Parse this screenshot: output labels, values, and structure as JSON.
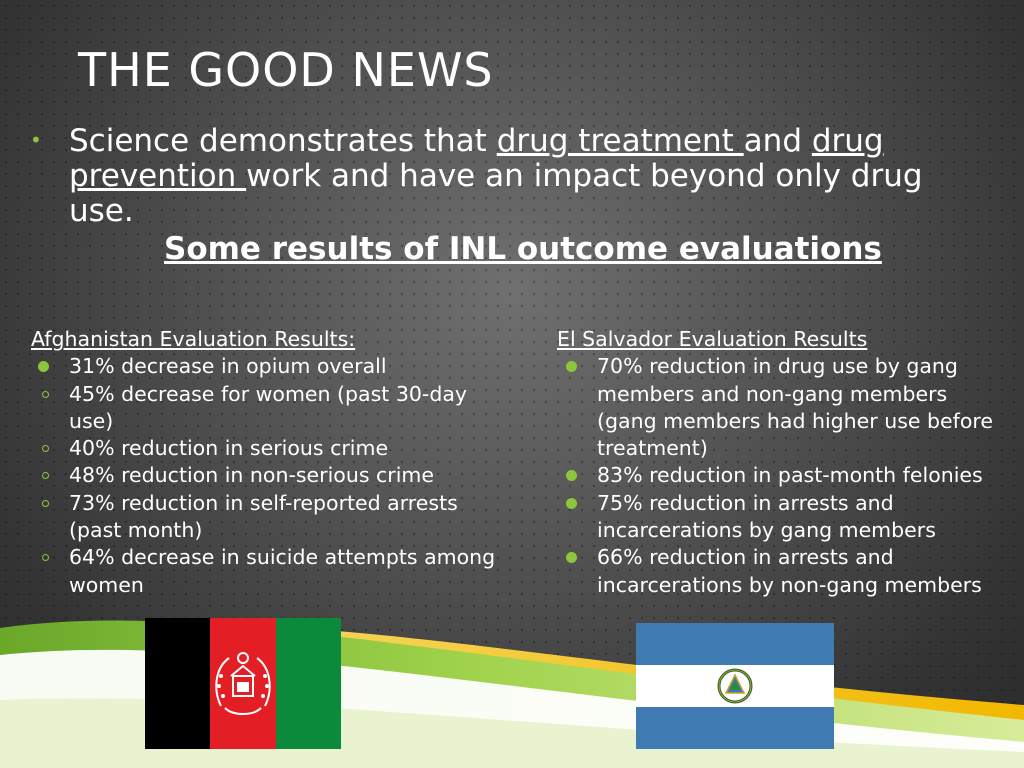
{
  "slide": {
    "title": "THE GOOD NEWS",
    "main_point": {
      "part1": "Science demonstrates that ",
      "link1": "drug treatment ",
      "part2": "and ",
      "link2": "drug prevention ",
      "part3": "work and have an impact beyond only drug use."
    },
    "subheading": "Some results of INL outcome evaluations",
    "afghanistan": {
      "heading": "Afghanistan Evaluation Results:",
      "items": [
        "31% decrease in opium overall",
        "45% decrease for women (past 30-day use)",
        "40% reduction in serious crime",
        "48% reduction in non-serious crime",
        "73% reduction in self-reported arrests (past month)",
        "64% decrease in suicide attempts among women"
      ]
    },
    "el_salvador": {
      "heading": "El Salvador Evaluation Results",
      "items": [
        "70% reduction in drug use by gang members and non-gang members (gang members had higher use before treatment)",
        "83% reduction in past-month felonies",
        "75% reduction in arrests and incarcerations by gang members",
        "66% reduction in arrests and incarcerations by non-gang members"
      ]
    },
    "colors": {
      "accent_green": "#8cc63f",
      "accent_yellow": "#f5c400",
      "text": "#ffffff"
    },
    "images": {
      "left_flag": "afghanistan-flag",
      "right_flag": "el-salvador-flag"
    }
  }
}
